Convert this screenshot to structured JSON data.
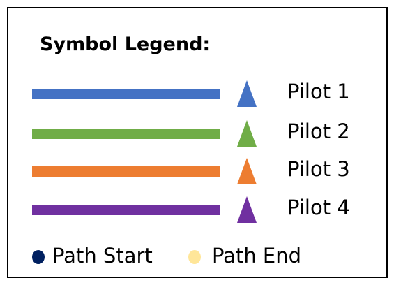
{
  "legend": {
    "title": "Symbol Legend:",
    "pilots": [
      {
        "label": "Pilot 1",
        "color": "#4472c4",
        "marker": "triangle-icon"
      },
      {
        "label": "Pilot 2",
        "color": "#70ad47",
        "marker": "triangle-icon"
      },
      {
        "label": "Pilot 3",
        "color": "#ed7d31",
        "marker": "triangle-icon"
      },
      {
        "label": "Pilot 4",
        "color": "#7030a0",
        "marker": "triangle-icon"
      }
    ],
    "path_markers": [
      {
        "label": "Path Start",
        "color": "#002060",
        "marker": "circle-icon"
      },
      {
        "label": "Path End",
        "color": "#ffe699",
        "marker": "circle-icon"
      }
    ]
  }
}
